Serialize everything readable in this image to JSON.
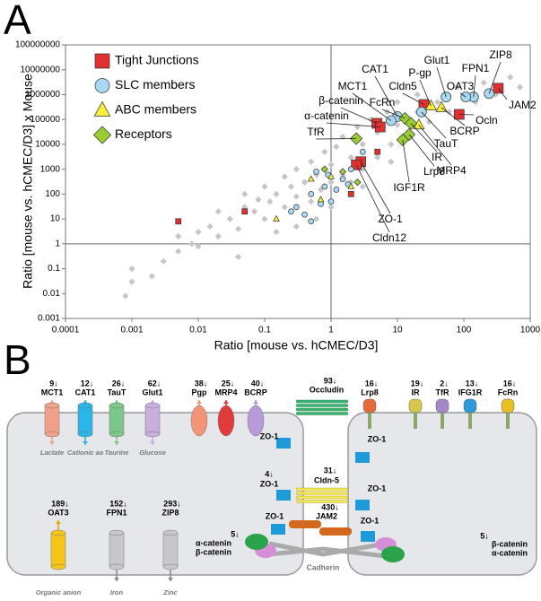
{
  "panel_labels": [
    "A",
    "B"
  ],
  "chart_data": {
    "type": "scatter",
    "xlabel": "Ratio [mouse vs. hCMEC/D3]",
    "ylabel": "Ratio [mouse vs. hCMEC/D3] x Mouse",
    "xscale": "log",
    "yscale": "log",
    "xlim": [
      0.0001,
      1000
    ],
    "ylim": [
      0.001,
      100000000
    ],
    "xticks": [
      0.0001,
      0.001,
      0.01,
      0.1,
      1,
      10,
      100,
      1000
    ],
    "yticks": [
      0.001,
      0.01,
      0.1,
      1,
      10,
      100,
      1000,
      10000,
      100000,
      1000000,
      10000000,
      100000000
    ],
    "xref": 1,
    "yref": 1,
    "legend": "upper left",
    "series": [
      {
        "color": "#c6c6ca",
        "marker": "diamond",
        "x": [
          0.0008,
          0.001,
          0.002,
          0.003,
          0.005,
          0.005,
          0.008,
          0.01,
          0.01,
          0.015,
          0.02,
          0.02,
          0.03,
          0.04,
          0.05,
          0.05,
          0.07,
          0.08,
          0.1,
          0.1,
          0.12,
          0.15,
          0.2,
          0.2,
          0.25,
          0.3,
          0.3,
          0.4,
          0.5,
          0.5,
          0.6,
          0.7,
          0.8,
          1,
          1,
          1.2,
          1.5,
          1.5,
          2,
          2,
          2.5,
          3,
          3,
          4,
          5,
          5,
          7,
          8,
          10,
          10,
          15,
          20,
          20,
          30,
          40,
          60,
          80,
          100,
          150,
          200,
          300,
          500,
          700,
          0.3,
          0.6,
          1,
          0.15,
          3,
          0.04,
          8,
          0.001
        ],
        "y": [
          0.008,
          0.03,
          0.05,
          0.2,
          0.5,
          2,
          1,
          3,
          0.8,
          5,
          2,
          20,
          10,
          4,
          30,
          100,
          20,
          60,
          10,
          200,
          50,
          100,
          30,
          500,
          200,
          80,
          1000,
          300,
          50,
          2000,
          600,
          150,
          5000,
          300,
          1500,
          8000,
          600,
          20000,
          3000,
          300,
          50000,
          1000,
          10000,
          100000,
          3000,
          30000,
          200000,
          10000,
          60000,
          500000,
          20000,
          200000,
          1000000,
          80000,
          500000,
          200000,
          2000000,
          1000000,
          500000,
          3000000,
          1000000,
          5000000,
          2000000,
          5,
          10,
          30,
          3,
          200,
          0.3,
          2000,
          0.1
        ]
      },
      {
        "name": "Tight Junctions",
        "color": "#e03030",
        "marker": "square",
        "x": [
          330,
          85,
          25,
          4.9,
          5.5,
          2.8,
          2.4,
          0.005,
          0.05,
          5,
          2
        ],
        "y": [
          1800000,
          160000,
          400000,
          70000,
          50000,
          2000,
          1500,
          8,
          20,
          5000,
          100
        ]
      },
      {
        "name": "SLC members",
        "color": "#a9d8f2",
        "marker": "circle",
        "x": [
          240,
          140,
          107,
          54,
          10,
          8,
          23,
          0.3,
          0.5,
          0.8,
          1,
          1.5,
          0.4,
          0.6,
          2,
          0.7,
          1.2,
          0.25,
          3,
          0.9,
          1.8,
          0.5
        ],
        "y": [
          1100000,
          800000,
          800000,
          800000,
          130000,
          90000,
          200000,
          30,
          100,
          200,
          50,
          400,
          15,
          800,
          1000,
          40,
          150,
          20,
          5000,
          600,
          250,
          8
        ]
      },
      {
        "name": "ABC members",
        "color": "#f6ee3a",
        "marker": "triangle",
        "x": [
          32,
          46,
          21,
          0.5,
          1,
          0.7,
          2,
          0.15
        ],
        "y": [
          350000,
          300000,
          60000,
          400,
          500,
          60,
          200,
          10
        ]
      },
      {
        "name": "Receptors",
        "color": "#9acd32",
        "marker": "diamond",
        "x": [
          13,
          16,
          2.4,
          15,
          12,
          1.5,
          2.5,
          0.8
        ],
        "y": [
          110000,
          70000,
          17000,
          25000,
          15000,
          800,
          300,
          1000
        ]
      }
    ],
    "annotations": [
      {
        "text": "JAM2",
        "x": 330,
        "y": 1800000
      },
      {
        "text": "Ocln",
        "x": 85,
        "y": 160000
      },
      {
        "text": "Cldn5",
        "x": 25,
        "y": 400000
      },
      {
        "text": "β-catenin",
        "x": 4.9,
        "y": 70000
      },
      {
        "text": "α-catenin",
        "x": 5.5,
        "y": 50000
      },
      {
        "text": "ZO-1",
        "x": 2.8,
        "y": 2000
      },
      {
        "text": "Cldn12",
        "x": 2.4,
        "y": 1500
      },
      {
        "text": "ZIP8",
        "x": 240,
        "y": 1100000
      },
      {
        "text": "FPN1",
        "x": 140,
        "y": 800000
      },
      {
        "text": "OAT3",
        "x": 107,
        "y": 800000
      },
      {
        "text": "Glut1",
        "x": 54,
        "y": 800000
      },
      {
        "text": "CAT1",
        "x": 10,
        "y": 130000
      },
      {
        "text": "MCT1",
        "x": 8,
        "y": 90000
      },
      {
        "text": "TauT",
        "x": 23,
        "y": 200000
      },
      {
        "text": "P-gp",
        "x": 32,
        "y": 350000
      },
      {
        "text": "BCRP",
        "x": 46,
        "y": 300000
      },
      {
        "text": "MRP4",
        "x": 21,
        "y": 60000
      },
      {
        "text": "FcRn",
        "x": 13,
        "y": 110000
      },
      {
        "text": "IR",
        "x": 16,
        "y": 70000
      },
      {
        "text": "TfR",
        "x": 2.4,
        "y": 17000
      },
      {
        "text": "Lrp8",
        "x": 15,
        "y": 25000
      },
      {
        "text": "IGF1R",
        "x": 12,
        "y": 15000
      }
    ]
  },
  "diagram": {
    "transporters_top": [
      {
        "count": "9↓",
        "name": "MCT1",
        "substrate": "Lactate"
      },
      {
        "count": "12↓",
        "name": "CAT1",
        "substrate": "Cationic aa"
      },
      {
        "count": "26↓",
        "name": "TauT",
        "substrate": "Taurine"
      },
      {
        "count": "62↓",
        "name": "Glut1",
        "substrate": "Glucose"
      },
      {
        "count": "38↓",
        "name": "Pgp"
      },
      {
        "count": "25↓",
        "name": "MRP4"
      },
      {
        "count": "40↓",
        "name": "BCRP"
      }
    ],
    "receptors": [
      {
        "count": "16↓",
        "name": "Lrp8"
      },
      {
        "count": "19↓",
        "name": "IR"
      },
      {
        "count": "2↓",
        "name": "TfR"
      },
      {
        "count": "13↓",
        "name": "IFG1R"
      },
      {
        "count": "16↓",
        "name": "FcRn"
      }
    ],
    "junctions": [
      {
        "count": "93↓",
        "name": "Occludin"
      },
      {
        "count": "31↓",
        "name": "Cldn-5"
      },
      {
        "count": "430↓",
        "name": "JAM2"
      }
    ],
    "zo1": {
      "name": "ZO-1",
      "count": "4↓"
    },
    "catenins_left": {
      "count": "5↓",
      "names": [
        "α-catenin",
        "β-catenin"
      ]
    },
    "catenins_right": {
      "count": "5↓",
      "names": [
        "β-catenin",
        "α-catenin"
      ]
    },
    "cadherin": "Cadherin",
    "transporters_bottom": [
      {
        "count": "189↓",
        "name": "OAT3",
        "substrate": "Organic anion"
      },
      {
        "count": "152↓",
        "name": "FPN1",
        "substrate": "Iron"
      },
      {
        "count": "293↓",
        "name": "ZIP8",
        "substrate": "Zinc"
      }
    ]
  }
}
